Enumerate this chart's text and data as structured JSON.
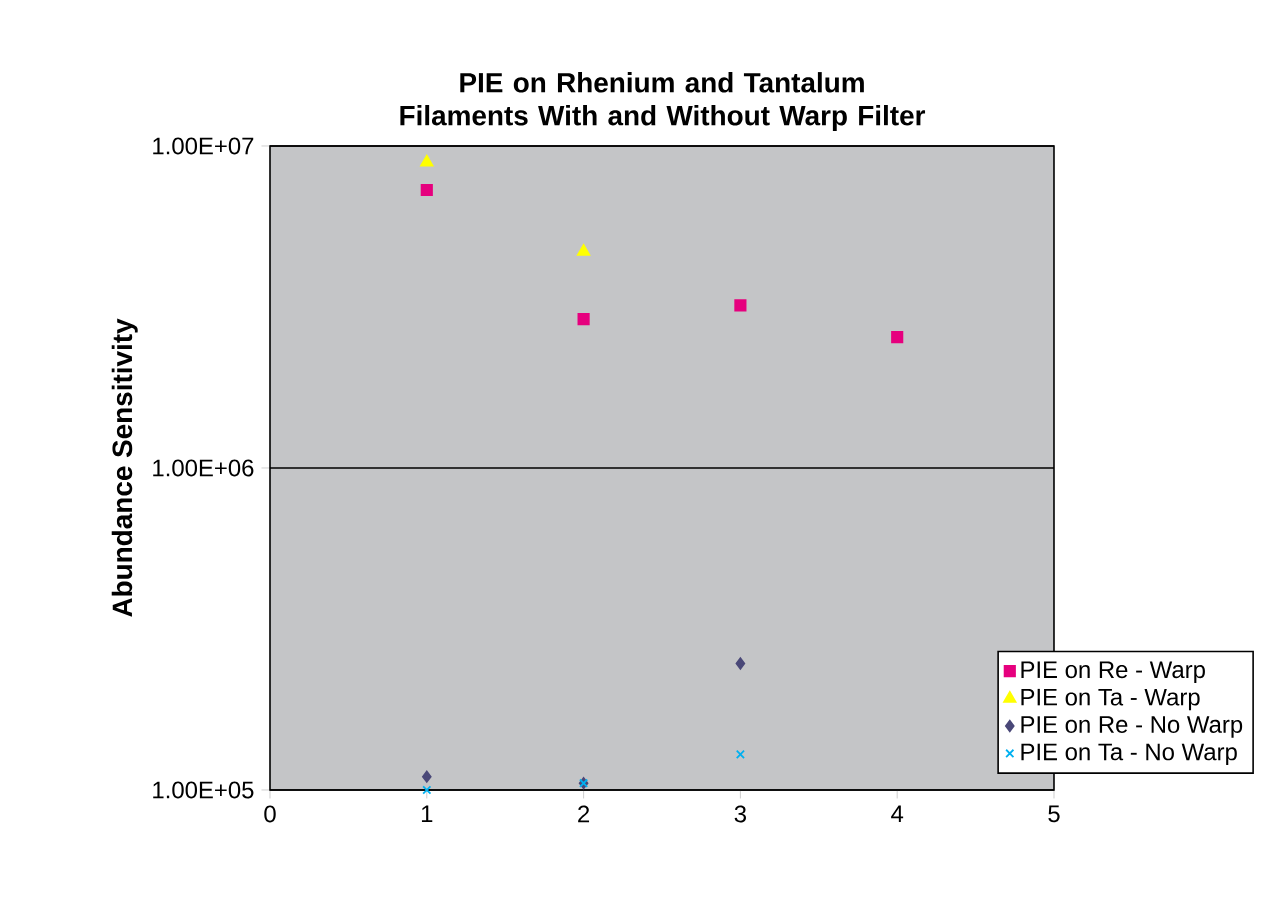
{
  "chart_data": {
    "type": "scatter",
    "title": "PIE on Rhenium and Tantalum Filaments With and Without Warp Filter",
    "ylabel": "Abundance Sensitivity",
    "x": [
      1,
      2,
      3,
      4
    ],
    "series": [
      {
        "name": "PIE on Re - Warp",
        "color": "#e6007e",
        "marker": "square",
        "values": [
          7300000,
          2900000,
          3200000,
          2550000
        ]
      },
      {
        "name": "PIE on Ta - Warp",
        "color": "#ffff00",
        "marker": "triangle",
        "values": [
          8900000,
          4700000,
          null,
          null
        ]
      },
      {
        "name": "PIE on Re - No Warp",
        "color": "#4a4878",
        "marker": "diamond",
        "values": [
          110000,
          105000,
          247000,
          null
        ]
      },
      {
        "name": "PIE on Ta - No Warp",
        "color": "#00b0f0",
        "marker": "cross",
        "values": [
          100000,
          105000,
          129000,
          null
        ]
      }
    ],
    "xlim": [
      0,
      5
    ],
    "xticks": [
      0,
      1,
      2,
      3,
      4,
      5
    ],
    "ylim": [
      100000,
      10000000
    ],
    "yticks": [
      {
        "value": 100000,
        "label": "1.00E+05"
      },
      {
        "value": 1000000,
        "label": "1.00E+06"
      },
      {
        "value": 10000000,
        "label": "1.00E+07"
      }
    ],
    "log": "y",
    "grid": "y",
    "legend": "bottom right"
  }
}
